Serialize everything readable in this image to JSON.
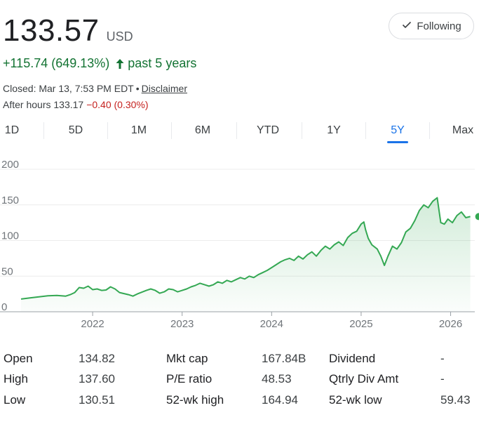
{
  "quote": {
    "price": "133.57",
    "currency": "USD",
    "change": "+115.74 (649.13%)",
    "period": "past 5 years",
    "closed_text": "Closed: Mar 13, 7:53 PM EDT",
    "disclaimer": "Disclaimer",
    "after_hours_label": "After hours 133.17",
    "after_hours_change": "−0.40 (0.30%)"
  },
  "follow_button": {
    "label": "Following",
    "icon": "check-icon"
  },
  "tabs": [
    {
      "label": "1D"
    },
    {
      "label": "5D"
    },
    {
      "label": "1M"
    },
    {
      "label": "6M"
    },
    {
      "label": "YTD"
    },
    {
      "label": "1Y"
    },
    {
      "label": "5Y",
      "active": true
    },
    {
      "label": "Max"
    }
  ],
  "colors": {
    "up": "#137333",
    "down": "#c5221f",
    "accent": "#1a73e8",
    "line": "#34a853"
  },
  "chart_data": {
    "type": "area",
    "y_ticks": [
      "200",
      "150",
      "100",
      "50",
      "0"
    ],
    "ylim": [
      0,
      200
    ],
    "x_ticks": [
      "2022",
      "2023",
      "2024",
      "2025",
      "2026"
    ],
    "x_tick_positions": [
      2022.0,
      2023.0,
      2024.0,
      2025.0,
      2026.0
    ],
    "xlim": [
      2021.2,
      2026.27
    ],
    "grid": true,
    "points": [
      [
        2021.2,
        17.8
      ],
      [
        2021.3,
        19.5
      ],
      [
        2021.4,
        21.0
      ],
      [
        2021.5,
        22.5
      ],
      [
        2021.6,
        23.0
      ],
      [
        2021.7,
        22.0
      ],
      [
        2021.75,
        24.0
      ],
      [
        2021.8,
        27.0
      ],
      [
        2021.85,
        34.0
      ],
      [
        2021.9,
        33.0
      ],
      [
        2021.95,
        36.0
      ],
      [
        2022.0,
        31.0
      ],
      [
        2022.05,
        32.0
      ],
      [
        2022.1,
        30.0
      ],
      [
        2022.15,
        30.5
      ],
      [
        2022.2,
        35.0
      ],
      [
        2022.25,
        32.0
      ],
      [
        2022.3,
        27.0
      ],
      [
        2022.4,
        24.0
      ],
      [
        2022.45,
        22.0
      ],
      [
        2022.5,
        25.0
      ],
      [
        2022.6,
        30.0
      ],
      [
        2022.65,
        32.0
      ],
      [
        2022.7,
        30.0
      ],
      [
        2022.75,
        26.0
      ],
      [
        2022.8,
        28.0
      ],
      [
        2022.85,
        32.0
      ],
      [
        2022.9,
        31.0
      ],
      [
        2022.95,
        28.0
      ],
      [
        2023.0,
        30.0
      ],
      [
        2023.05,
        32.0
      ],
      [
        2023.1,
        35.0
      ],
      [
        2023.15,
        37.0
      ],
      [
        2023.2,
        40.0
      ],
      [
        2023.25,
        38.0
      ],
      [
        2023.3,
        36.0
      ],
      [
        2023.35,
        38.0
      ],
      [
        2023.4,
        42.0
      ],
      [
        2023.45,
        40.0
      ],
      [
        2023.5,
        44.0
      ],
      [
        2023.55,
        42.0
      ],
      [
        2023.6,
        45.0
      ],
      [
        2023.65,
        48.0
      ],
      [
        2023.7,
        46.0
      ],
      [
        2023.75,
        50.0
      ],
      [
        2023.8,
        48.0
      ],
      [
        2023.85,
        52.0
      ],
      [
        2023.9,
        55.0
      ],
      [
        2023.95,
        58.0
      ],
      [
        2024.0,
        62.0
      ],
      [
        2024.05,
        66.0
      ],
      [
        2024.1,
        70.0
      ],
      [
        2024.15,
        73.0
      ],
      [
        2024.2,
        75.0
      ],
      [
        2024.25,
        72.0
      ],
      [
        2024.3,
        78.0
      ],
      [
        2024.35,
        74.0
      ],
      [
        2024.4,
        80.0
      ],
      [
        2024.45,
        84.0
      ],
      [
        2024.5,
        78.0
      ],
      [
        2024.55,
        86.0
      ],
      [
        2024.6,
        92.0
      ],
      [
        2024.65,
        88.0
      ],
      [
        2024.7,
        94.0
      ],
      [
        2024.75,
        98.0
      ],
      [
        2024.8,
        93.0
      ],
      [
        2024.85,
        104.0
      ],
      [
        2024.9,
        110.0
      ],
      [
        2024.95,
        113.0
      ],
      [
        2025.0,
        123.0
      ],
      [
        2025.03,
        126.0
      ],
      [
        2025.05,
        115.0
      ],
      [
        2025.08,
        103.0
      ],
      [
        2025.12,
        94.0
      ],
      [
        2025.18,
        88.0
      ],
      [
        2025.22,
        78.0
      ],
      [
        2025.26,
        65.0
      ],
      [
        2025.3,
        78.0
      ],
      [
        2025.35,
        92.0
      ],
      [
        2025.4,
        88.0
      ],
      [
        2025.45,
        97.0
      ],
      [
        2025.5,
        112.0
      ],
      [
        2025.55,
        117.0
      ],
      [
        2025.6,
        128.0
      ],
      [
        2025.65,
        142.0
      ],
      [
        2025.7,
        150.0
      ],
      [
        2025.75,
        146.0
      ],
      [
        2025.8,
        155.0
      ],
      [
        2025.85,
        160.0
      ],
      [
        2025.89,
        125.0
      ],
      [
        2025.93,
        123.0
      ],
      [
        2025.97,
        130.0
      ],
      [
        2026.02,
        125.0
      ],
      [
        2026.07,
        135.0
      ],
      [
        2026.12,
        140.0
      ],
      [
        2026.17,
        132.0
      ],
      [
        2026.22,
        133.57
      ]
    ],
    "last_point_marker": true
  },
  "stats": {
    "col1": [
      {
        "label": "Open",
        "value": "134.82"
      },
      {
        "label": "High",
        "value": "137.60"
      },
      {
        "label": "Low",
        "value": "130.51"
      }
    ],
    "col2": [
      {
        "label": "Mkt cap",
        "value": "167.84B"
      },
      {
        "label": "P/E ratio",
        "value": "48.53"
      },
      {
        "label": "52-wk high",
        "value": "164.94"
      }
    ],
    "col3": [
      {
        "label": "Dividend",
        "value": "-"
      },
      {
        "label": "Qtrly Div Amt",
        "value": "-"
      },
      {
        "label": "52-wk low",
        "value": "59.43"
      }
    ]
  }
}
